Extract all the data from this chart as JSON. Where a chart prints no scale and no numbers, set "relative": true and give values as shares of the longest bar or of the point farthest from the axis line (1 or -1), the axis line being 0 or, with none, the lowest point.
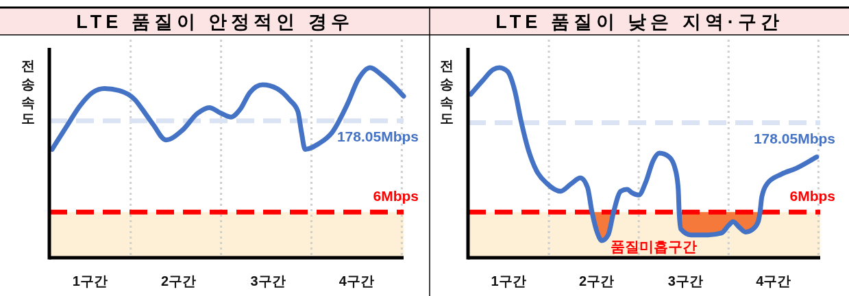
{
  "chart_data": [
    {
      "type": "line",
      "title": "LTE 품질이 안정적인 경우",
      "ylabel": "전송속도",
      "relative": true,
      "xlim": [
        0.1,
        4.02
      ],
      "xticks": [
        {
          "value": 0.55,
          "label": "1구간"
        },
        {
          "value": 1.53,
          "label": "2구간"
        },
        {
          "value": 2.52,
          "label": "3구간"
        },
        {
          "value": 3.5,
          "label": "4구간"
        }
      ],
      "series": [
        {
          "color": "#4472c4",
          "x": [
            0.13,
            0.29,
            0.44,
            0.58,
            0.71,
            0.87,
            1.05,
            1.13,
            1.25,
            1.39,
            1.57,
            1.74,
            1.87,
            2.0,
            2.11,
            2.21,
            2.32,
            2.46,
            2.62,
            2.76,
            2.85,
            2.89,
            2.93,
            3.08,
            3.23,
            3.4,
            3.52,
            3.65,
            3.78,
            3.92,
            4.02
          ],
          "values": [
            0.57,
            0.69,
            0.8,
            0.87,
            0.89,
            0.88,
            0.83,
            0.78,
            0.7,
            0.62,
            0.67,
            0.76,
            0.79,
            0.76,
            0.74,
            0.78,
            0.87,
            0.91,
            0.89,
            0.83,
            0.77,
            0.66,
            0.57,
            0.6,
            0.66,
            0.81,
            0.94,
            1.0,
            0.96,
            0.9,
            0.85
          ]
        }
      ],
      "ref_lines": [
        {
          "axis": "x",
          "value": 1,
          "color": "#cfcfcf",
          "line_style": "dotted"
        },
        {
          "axis": "x",
          "value": 2,
          "color": "#cfcfcf",
          "line_style": "dotted"
        },
        {
          "axis": "x",
          "value": 3,
          "color": "#cfcfcf",
          "line_style": "dotted"
        },
        {
          "axis": "x",
          "value": 4,
          "color": "#cfcfcf",
          "line_style": "dotted"
        },
        {
          "axis": "y",
          "value": 0.72,
          "label": "178.05Mbps",
          "color": "#dae3f3",
          "line_style": "dashed"
        },
        {
          "axis": "y",
          "value": 0.24,
          "label": "6Mbps",
          "color": "#ff0000",
          "line_style": "dashed"
        }
      ],
      "bands": [
        {
          "axis": "y",
          "from": 0,
          "to": 0.24,
          "color": "#fdf0d6"
        }
      ]
    },
    {
      "type": "line",
      "title": "LTE 품질이 낮은 지역·구간",
      "ylabel": "전송속도",
      "relative": true,
      "xlim": [
        0.1,
        4.02
      ],
      "xticks": [
        {
          "value": 0.55,
          "label": "1구간"
        },
        {
          "value": 1.53,
          "label": "2구간"
        },
        {
          "value": 2.52,
          "label": "3구간"
        },
        {
          "value": 3.5,
          "label": "4구간"
        }
      ],
      "series": [
        {
          "color": "#4472c4",
          "x": [
            0.13,
            0.26,
            0.38,
            0.45,
            0.54,
            0.62,
            0.69,
            0.77,
            0.86,
            0.98,
            1.13,
            1.25,
            1.35,
            1.43,
            1.48,
            1.54,
            1.59,
            1.66,
            1.72,
            1.8,
            1.87,
            1.93,
            2.0,
            2.08,
            2.16,
            2.23,
            2.34,
            2.41,
            2.44,
            2.45,
            2.47,
            2.58,
            2.77,
            2.92,
            3.0,
            3.05,
            3.12,
            3.19,
            3.27,
            3.33,
            3.35,
            3.37,
            3.43,
            3.59,
            3.75,
            3.98
          ],
          "values": [
            0.86,
            0.93,
            0.99,
            1.0,
            0.98,
            0.88,
            0.72,
            0.57,
            0.46,
            0.39,
            0.35,
            0.39,
            0.42,
            0.37,
            0.24,
            0.13,
            0.09,
            0.12,
            0.24,
            0.35,
            0.36,
            0.34,
            0.33,
            0.4,
            0.51,
            0.55,
            0.53,
            0.46,
            0.36,
            0.24,
            0.15,
            0.12,
            0.12,
            0.13,
            0.17,
            0.19,
            0.16,
            0.135,
            0.15,
            0.19,
            0.24,
            0.32,
            0.39,
            0.44,
            0.47,
            0.53
          ]
        }
      ],
      "ref_lines": [
        {
          "axis": "x",
          "value": 1,
          "color": "#cfcfcf",
          "line_style": "dotted"
        },
        {
          "axis": "x",
          "value": 2,
          "color": "#cfcfcf",
          "line_style": "dotted"
        },
        {
          "axis": "x",
          "value": 3,
          "color": "#cfcfcf",
          "line_style": "dotted"
        },
        {
          "axis": "x",
          "value": 4,
          "color": "#cfcfcf",
          "line_style": "dotted"
        },
        {
          "axis": "y",
          "value": 0.71,
          "label": "178.05Mbps",
          "color": "#dae3f3",
          "line_style": "dashed"
        },
        {
          "axis": "y",
          "value": 0.24,
          "label": "6Mbps",
          "color": "#ff0000",
          "line_style": "dashed"
        }
      ],
      "bands": [
        {
          "axis": "y",
          "from": 0,
          "to": 0.24,
          "color": "#fdf0d6"
        }
      ],
      "annotations": [
        "품질미흡구간"
      ]
    }
  ]
}
